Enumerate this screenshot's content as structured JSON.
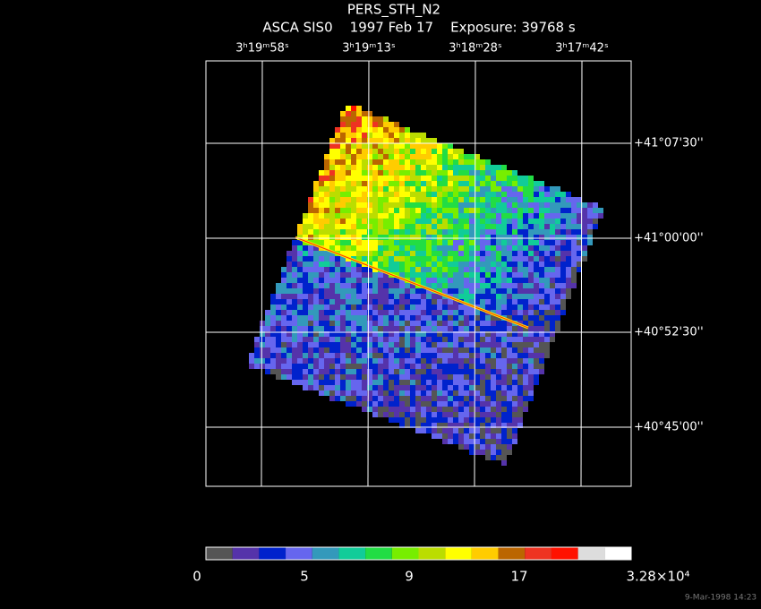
{
  "header": {
    "title": "PERS_STH_N2",
    "subtitle": "ASCA SIS0    1997 Feb 17    Exposure: 39768 s"
  },
  "ra_labels": [
    "3ʰ19ᵐ58ˢ",
    "3ʰ19ᵐ13ˢ",
    "3ʰ18ᵐ28ˢ",
    "3ʰ17ᵐ42ˢ"
  ],
  "dec_labels": [
    "+41°07'30''",
    "+41°00'00''",
    "+40°52'30''",
    "+40°45'00''"
  ],
  "colorbar": {
    "colors": [
      "#555555",
      "#5533aa",
      "#0022cc",
      "#6666ee",
      "#3399bb",
      "#11cc99",
      "#22dd44",
      "#77ee00",
      "#bbdd00",
      "#ffff00",
      "#ffcc00",
      "#bb6600",
      "#ee3322",
      "#ff1100",
      "#dddddd",
      "#ffffff"
    ],
    "labels": [
      "0",
      "5",
      "9",
      "17",
      "3.28×10⁴"
    ]
  },
  "timestamp": "9-Mar-1998 14:23"
}
